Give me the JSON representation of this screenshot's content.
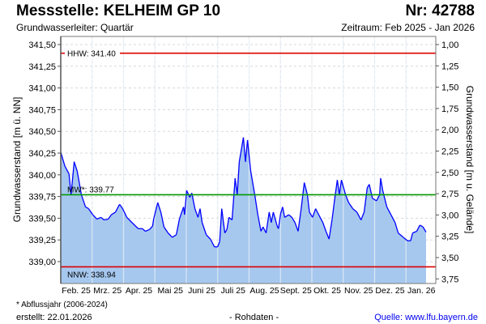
{
  "header": {
    "title": "Messstelle: KELHEIM GP 10",
    "number": "Nr: 42788",
    "aquifer": "Grundwasserleiter: Quartär",
    "period": "Zeitraum: Feb 2025 - Jan 2026"
  },
  "footer": {
    "note": "* Abflussjahr (2006-2024)",
    "created": "erstellt:  22.01.2026",
    "rawdata": "- Rohdaten -",
    "source": "Quelle: www.lfu.bayern.de"
  },
  "chart_data": {
    "type": "area",
    "ylabel": "Grundwasserstand [m ü. NN]",
    "ylabel_right": "Grundwasserstand [m u. Gelände]",
    "ylim": [
      338.8,
      341.6
    ],
    "yticks": [
      "339,00",
      "339,25",
      "339,50",
      "339,75",
      "340,00",
      "340,25",
      "340,50",
      "340,75",
      "341,00",
      "341,25",
      "341,50"
    ],
    "yticks_right": [
      "1,00",
      "1,25",
      "1,50",
      "1,75",
      "2,00",
      "2,25",
      "2,50",
      "2,75",
      "3,00",
      "3,25",
      "3,50",
      "3,75"
    ],
    "xticks": [
      "Feb. 25",
      "Mrz. 25",
      "Apr. 25",
      "Mai 25",
      "Juni 25",
      "Juli 25",
      "Aug. 25",
      "Sept. 25",
      "Okt. 25",
      "Nov. 25",
      "Dez. 25",
      "Jan. 26"
    ],
    "x_unit": "days since 2025-02-01",
    "reference_lines": [
      {
        "label": "HHW: 341.40",
        "value": 341.4,
        "color": "#dd0000"
      },
      {
        "label": "MW*: 339.77",
        "value": 339.77,
        "color": "#009900"
      },
      {
        "label": "NNW: 338.94",
        "value": 338.94,
        "color": "#dd0000"
      }
    ],
    "series": [
      {
        "name": "Grundwasserstand",
        "color": "#0000ff",
        "fill": "#a6c8ef",
        "x": [
          0,
          4,
          8,
          10,
          13,
          16,
          20,
          24,
          27,
          31,
          35,
          39,
          42,
          46,
          49,
          53,
          57,
          60,
          64,
          69,
          75,
          79,
          82,
          86,
          89,
          90,
          94,
          97,
          100,
          104,
          108,
          112,
          115,
          119,
          120,
          122,
          125,
          127,
          130,
          133,
          135,
          137,
          141,
          145,
          149,
          152,
          154,
          156,
          159,
          161,
          163,
          166,
          169,
          171,
          173,
          177,
          179,
          181,
          184,
          188,
          191,
          194,
          196,
          199,
          202,
          204,
          206,
          210,
          211,
          213,
          215,
          217,
          221,
          224,
          227,
          230,
          233,
          236,
          239,
          241,
          244,
          247,
          250,
          254,
          257,
          260,
          263,
          265,
          268,
          270,
          272,
          276,
          279,
          283,
          287,
          291,
          294,
          297,
          299,
          302,
          306,
          309,
          310,
          312,
          316,
          320,
          324,
          327,
          332,
          336,
          339,
          341,
          345,
          348,
          351,
          354
        ],
        "y": [
          340.26,
          340.1,
          340.01,
          339.77,
          340.15,
          340.04,
          339.77,
          339.63,
          339.61,
          339.54,
          339.49,
          339.51,
          339.48,
          339.49,
          339.54,
          339.57,
          339.66,
          339.61,
          339.51,
          339.45,
          339.38,
          339.38,
          339.35,
          339.37,
          339.41,
          339.49,
          339.68,
          339.57,
          339.4,
          339.33,
          339.28,
          339.31,
          339.49,
          339.63,
          339.54,
          339.82,
          339.74,
          339.79,
          339.61,
          339.51,
          339.61,
          339.45,
          339.31,
          339.26,
          339.17,
          339.17,
          339.23,
          339.61,
          339.33,
          339.37,
          339.51,
          339.48,
          339.96,
          339.77,
          340.15,
          340.43,
          340.15,
          340.4,
          340.05,
          339.77,
          339.54,
          339.35,
          339.4,
          339.33,
          339.57,
          339.45,
          339.57,
          339.4,
          339.38,
          339.55,
          339.63,
          339.51,
          339.54,
          339.51,
          339.45,
          339.35,
          339.61,
          339.91,
          339.77,
          339.57,
          339.51,
          339.61,
          339.54,
          339.45,
          339.35,
          339.26,
          339.49,
          339.68,
          339.94,
          339.77,
          339.94,
          339.77,
          339.68,
          339.61,
          339.57,
          339.48,
          339.57,
          339.85,
          339.89,
          339.73,
          339.7,
          339.77,
          339.96,
          339.82,
          339.63,
          339.54,
          339.45,
          339.33,
          339.28,
          339.24,
          339.24,
          339.33,
          339.35,
          339.42,
          339.4,
          339.34
        ]
      }
    ]
  }
}
